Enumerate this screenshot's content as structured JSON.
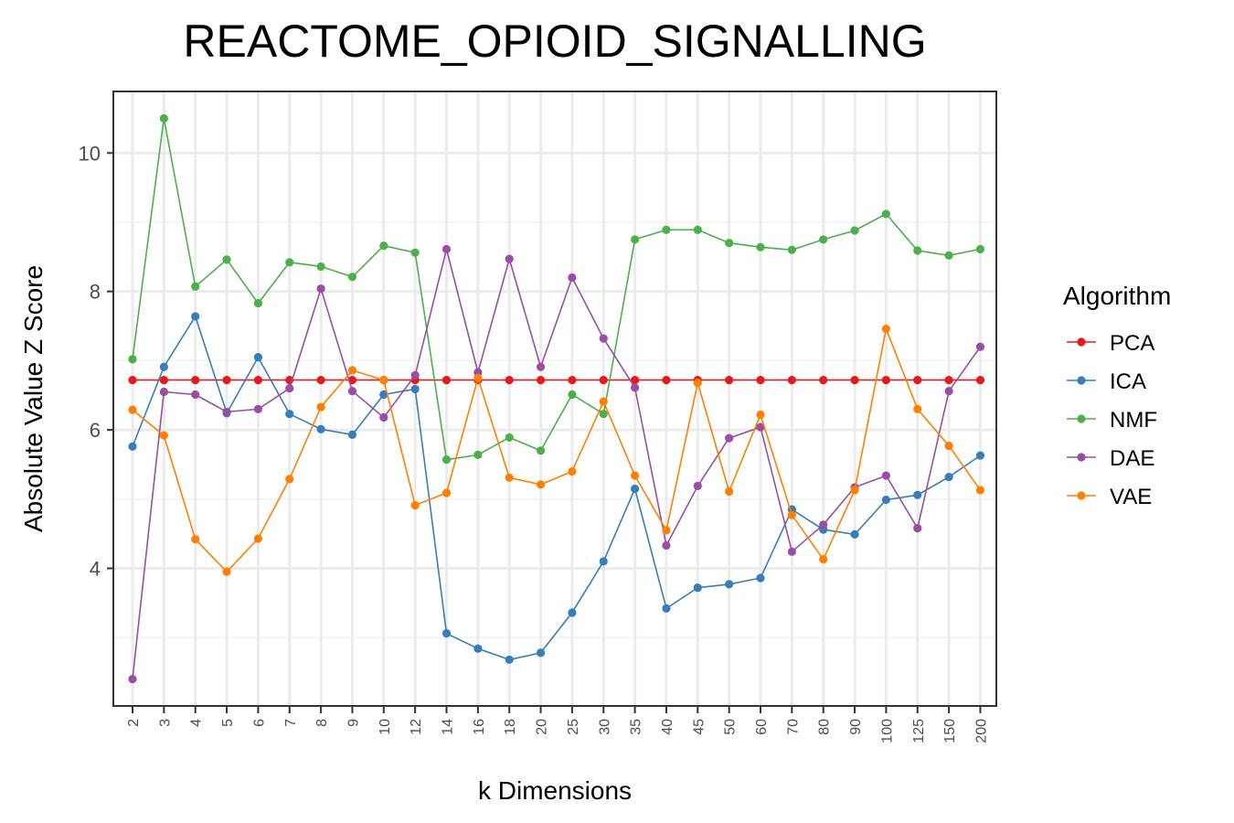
{
  "chart_data": {
    "type": "line",
    "title": "REACTOME_OPIOID_SIGNALLING",
    "xlabel": "k Dimensions",
    "ylabel": "Absolute Value Z Score",
    "categories": [
      "2",
      "3",
      "4",
      "5",
      "6",
      "7",
      "8",
      "9",
      "10",
      "12",
      "14",
      "16",
      "18",
      "20",
      "25",
      "30",
      "35",
      "40",
      "45",
      "50",
      "60",
      "70",
      "80",
      "90",
      "100",
      "125",
      "150",
      "200"
    ],
    "ylim": [
      2.0,
      10.9
    ],
    "yticks": [
      "4",
      "6",
      "8",
      "10"
    ],
    "grid": true,
    "legend": {
      "title": "Algorithm",
      "position": "right"
    },
    "series": [
      {
        "name": "PCA",
        "color": "#e41a1c",
        "values": [
          6.72,
          6.72,
          6.72,
          6.72,
          6.72,
          6.72,
          6.72,
          6.72,
          6.72,
          6.72,
          6.72,
          6.72,
          6.72,
          6.72,
          6.72,
          6.72,
          6.72,
          6.72,
          6.72,
          6.72,
          6.72,
          6.72,
          6.72,
          6.72,
          6.72,
          6.72,
          6.72,
          6.72
        ]
      },
      {
        "name": "ICA",
        "color": "#377eb8",
        "values": [
          5.76,
          6.91,
          7.64,
          6.24,
          7.05,
          6.23,
          6.01,
          5.93,
          6.51,
          6.59,
          3.06,
          2.84,
          2.68,
          2.78,
          3.36,
          4.1,
          5.15,
          3.42,
          3.72,
          3.77,
          3.86,
          4.85,
          4.56,
          4.49,
          4.99,
          5.06,
          5.32,
          5.63
        ]
      },
      {
        "name": "NMF",
        "color": "#4daf4a",
        "values": [
          7.02,
          10.5,
          8.07,
          8.46,
          7.83,
          8.42,
          8.36,
          8.21,
          8.66,
          8.56,
          5.57,
          5.64,
          5.89,
          5.7,
          6.51,
          6.23,
          8.75,
          8.89,
          8.89,
          8.7,
          8.64,
          8.6,
          8.75,
          8.88,
          9.12,
          8.59,
          8.52,
          8.61
        ]
      },
      {
        "name": "DAE",
        "color": "#984ea3",
        "values": [
          2.4,
          6.55,
          6.51,
          6.26,
          6.3,
          6.6,
          8.04,
          6.56,
          6.18,
          6.79,
          8.61,
          6.83,
          8.47,
          6.91,
          8.2,
          7.32,
          6.61,
          4.33,
          5.19,
          5.88,
          6.04,
          4.24,
          4.63,
          5.17,
          5.34,
          4.58,
          6.56,
          7.2
        ]
      },
      {
        "name": "VAE",
        "color": "#ff7f00",
        "values": [
          6.29,
          5.92,
          4.42,
          3.95,
          4.43,
          5.29,
          6.33,
          6.86,
          6.72,
          4.91,
          5.09,
          6.75,
          5.31,
          5.21,
          5.4,
          6.41,
          5.34,
          4.55,
          6.68,
          5.11,
          6.22,
          4.77,
          4.13,
          5.13,
          7.46,
          6.3,
          5.77,
          5.13
        ]
      }
    ]
  }
}
